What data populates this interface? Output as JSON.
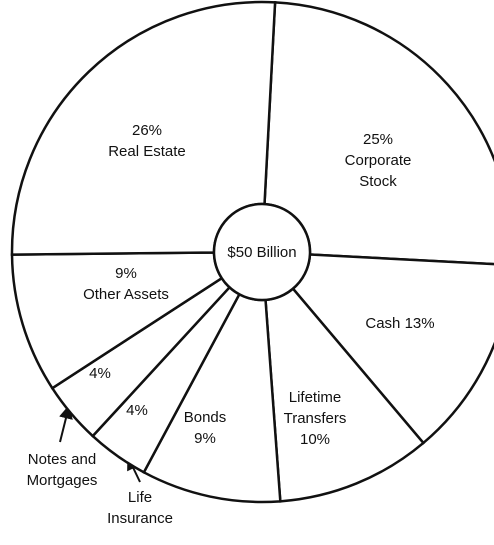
{
  "chart_data": {
    "type": "pie",
    "center_label": "$50 Billion",
    "categories": [
      "Corporate Stock",
      "Cash",
      "Lifetime Transfers",
      "Bonds",
      "Life Insurance",
      "Notes and Mortgages",
      "Other Assets",
      "Real Estate"
    ],
    "values": [
      25,
      13,
      10,
      9,
      4,
      4,
      9,
      26
    ],
    "value_labels": [
      "25%",
      "13%",
      "10%",
      "9%",
      "4%",
      "4%",
      "9%",
      "26%"
    ],
    "color": "#ffffff"
  }
}
